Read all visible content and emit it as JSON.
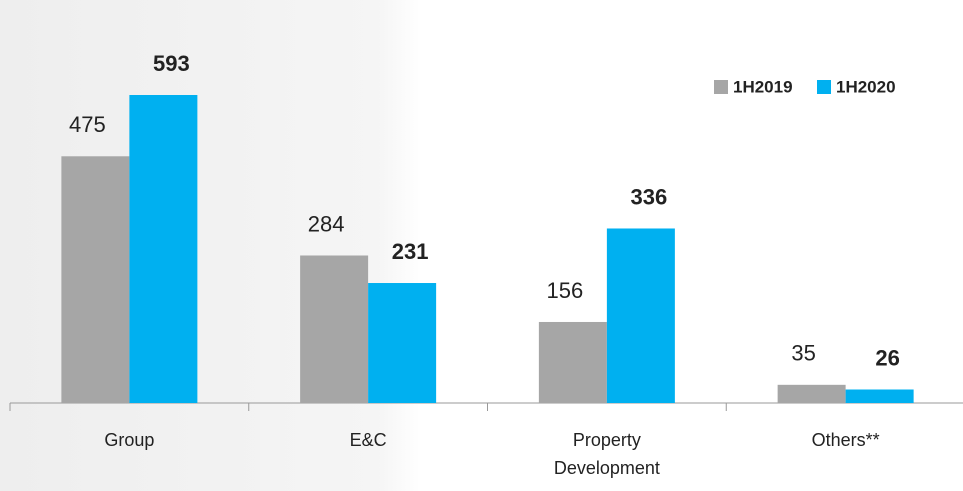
{
  "chart_data": {
    "type": "bar",
    "categories": [
      "Group",
      "E&C",
      "Property Development",
      "Others**"
    ],
    "series": [
      {
        "name": "1H2019",
        "color": "#a6a6a6",
        "values": [
          475,
          284,
          156,
          35
        ]
      },
      {
        "name": "1H2020",
        "color": "#00b0f0",
        "values": [
          593,
          231,
          336,
          26
        ]
      }
    ],
    "legend": "top-right"
  }
}
